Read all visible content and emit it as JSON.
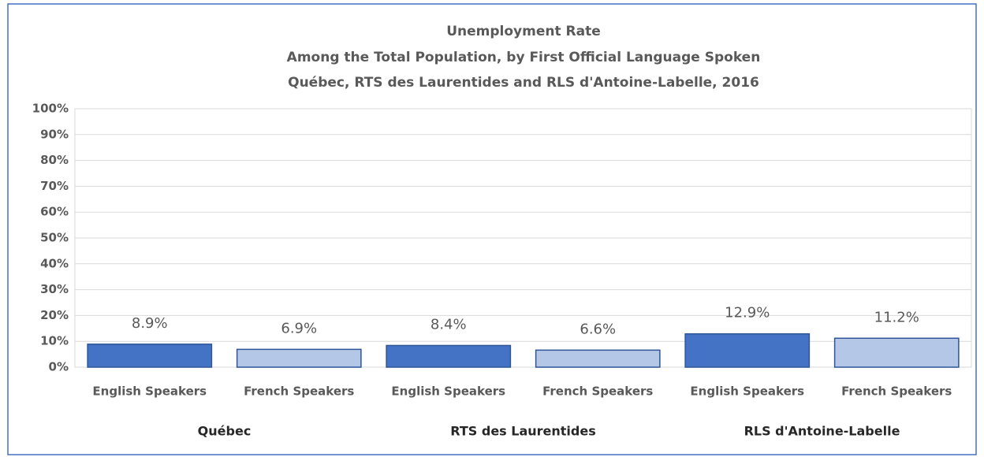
{
  "chart_data": {
    "type": "bar",
    "title": "Unemployment Rate",
    "subtitle": [
      "Among the Total Population, by First Official Language Spoken",
      "Québec, RTS des Laurentides and RLS d'Antoine-Labelle, 2016"
    ],
    "categories": [
      "English Speakers",
      "French Speakers",
      "English Speakers",
      "French Speakers",
      "English Speakers",
      "French Speakers"
    ],
    "groups": [
      "Québec",
      "RTS des Laurentides",
      "RLS d'Antoine-Labelle"
    ],
    "values": [
      8.9,
      6.9,
      8.4,
      6.6,
      12.9,
      11.2
    ],
    "value_labels": [
      "8.9%",
      "6.9%",
      "8.4%",
      "6.6%",
      "12.9%",
      "11.2%"
    ],
    "colors": [
      "#4472c4",
      "#b4c7e7",
      "#4472c4",
      "#b4c7e7",
      "#4472c4",
      "#b4c7e7"
    ],
    "ylim": [
      0,
      100
    ],
    "yticks": [
      {
        "value": 0,
        "label": "0%"
      },
      {
        "value": 10,
        "label": "10%"
      },
      {
        "value": 20,
        "label": "20%"
      },
      {
        "value": 30,
        "label": "30%"
      },
      {
        "value": 40,
        "label": "40%"
      },
      {
        "value": 50,
        "label": "50%"
      },
      {
        "value": 60,
        "label": "60%"
      },
      {
        "value": 70,
        "label": "70%"
      },
      {
        "value": 80,
        "label": "80%"
      },
      {
        "value": 90,
        "label": "90%"
      },
      {
        "value": 100,
        "label": "100%"
      }
    ],
    "grid": true
  }
}
